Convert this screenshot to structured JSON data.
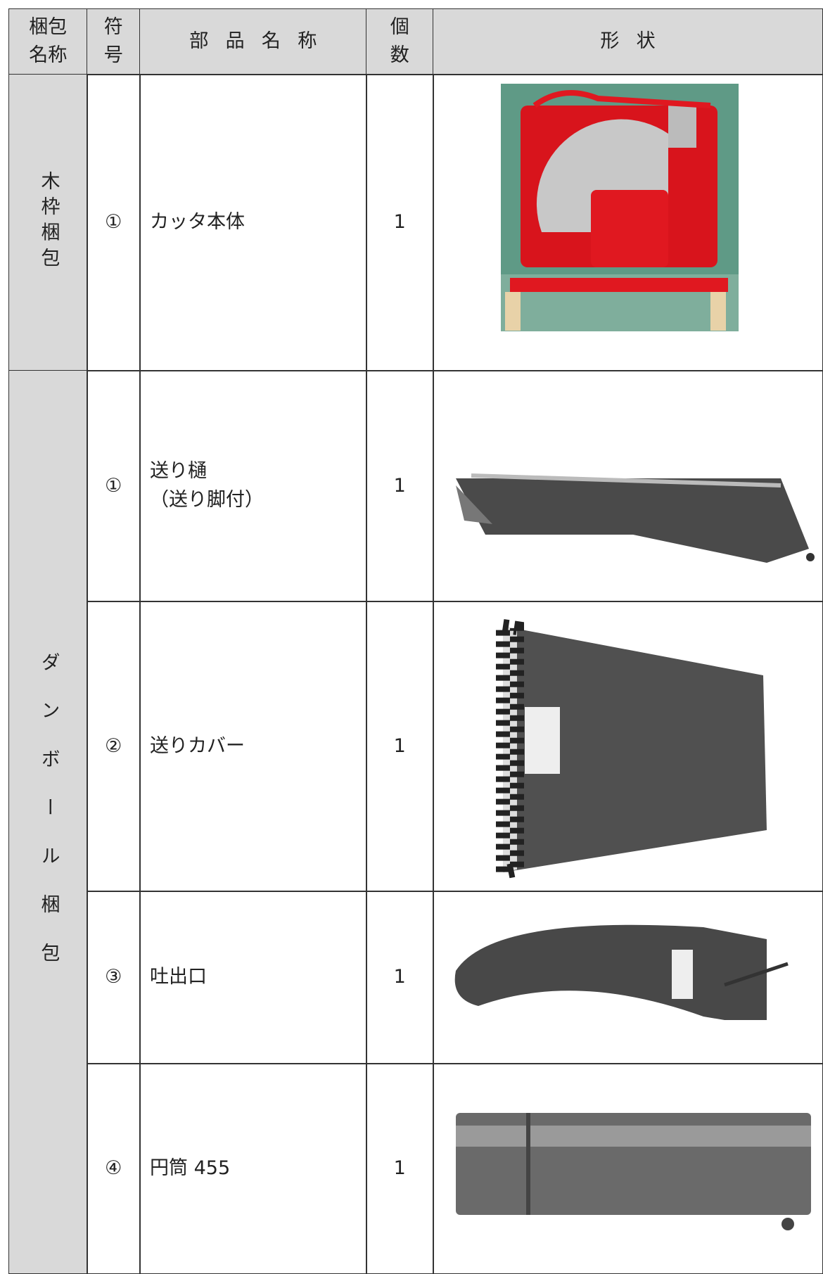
{
  "table": {
    "header": [
      [
        "梱包",
        "名称"
      ],
      [
        "符",
        "号"
      ],
      [
        "部品名称"
      ],
      [
        "個",
        "数"
      ],
      [
        "形状"
      ]
    ],
    "groups": [
      {
        "name": "木枠梱包",
        "rows": [
          {
            "symbol": "①",
            "name": [
              "カッタ本体"
            ],
            "qty": 1
          }
        ]
      },
      {
        "name": "ダンボール梱包",
        "rows": [
          {
            "symbol": "①",
            "name": [
              "送り樋",
              "（送り脚付）"
            ],
            "qty": 1
          },
          {
            "symbol": "②",
            "name": [
              "送りカバー"
            ],
            "qty": 1
          },
          {
            "symbol": "③",
            "name": [
              "吐出口"
            ],
            "qty": 1
          },
          {
            "symbol": "④",
            "name": [
              "円筒 455"
            ],
            "qty": 1
          }
        ]
      }
    ]
  }
}
